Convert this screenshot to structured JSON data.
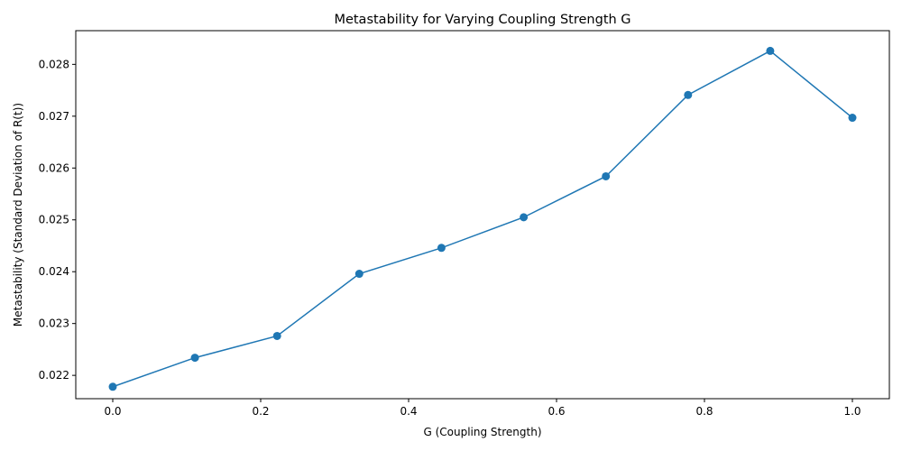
{
  "chart_data": {
    "type": "line",
    "title": "Metastability for Varying Coupling Strength G",
    "xlabel": "G (Coupling Strength)",
    "ylabel": "Metastability (Standard Deviation of R(t))",
    "xlim": [
      -0.05,
      1.05
    ],
    "ylim": [
      0.02155,
      0.02865
    ],
    "xticks": [
      "0.0",
      "0.2",
      "0.4",
      "0.6",
      "0.8",
      "1.0"
    ],
    "xtick_values": [
      0.0,
      0.2,
      0.4,
      0.6,
      0.8,
      1.0
    ],
    "yticks": [
      "0.022",
      "0.023",
      "0.024",
      "0.025",
      "0.026",
      "0.027",
      "0.028"
    ],
    "ytick_values": [
      0.022,
      0.023,
      0.024,
      0.025,
      0.026,
      0.027,
      0.028
    ],
    "grid": false,
    "series": [
      {
        "color": "#1f77b4",
        "marker": "circle",
        "x": [
          0.0,
          0.1111,
          0.2222,
          0.3333,
          0.4444,
          0.5556,
          0.6667,
          0.7778,
          0.8889,
          1.0
        ],
        "y": [
          0.02178,
          0.02234,
          0.02276,
          0.02396,
          0.02446,
          0.02505,
          0.02584,
          0.02741,
          0.02826,
          0.02697
        ]
      }
    ]
  }
}
